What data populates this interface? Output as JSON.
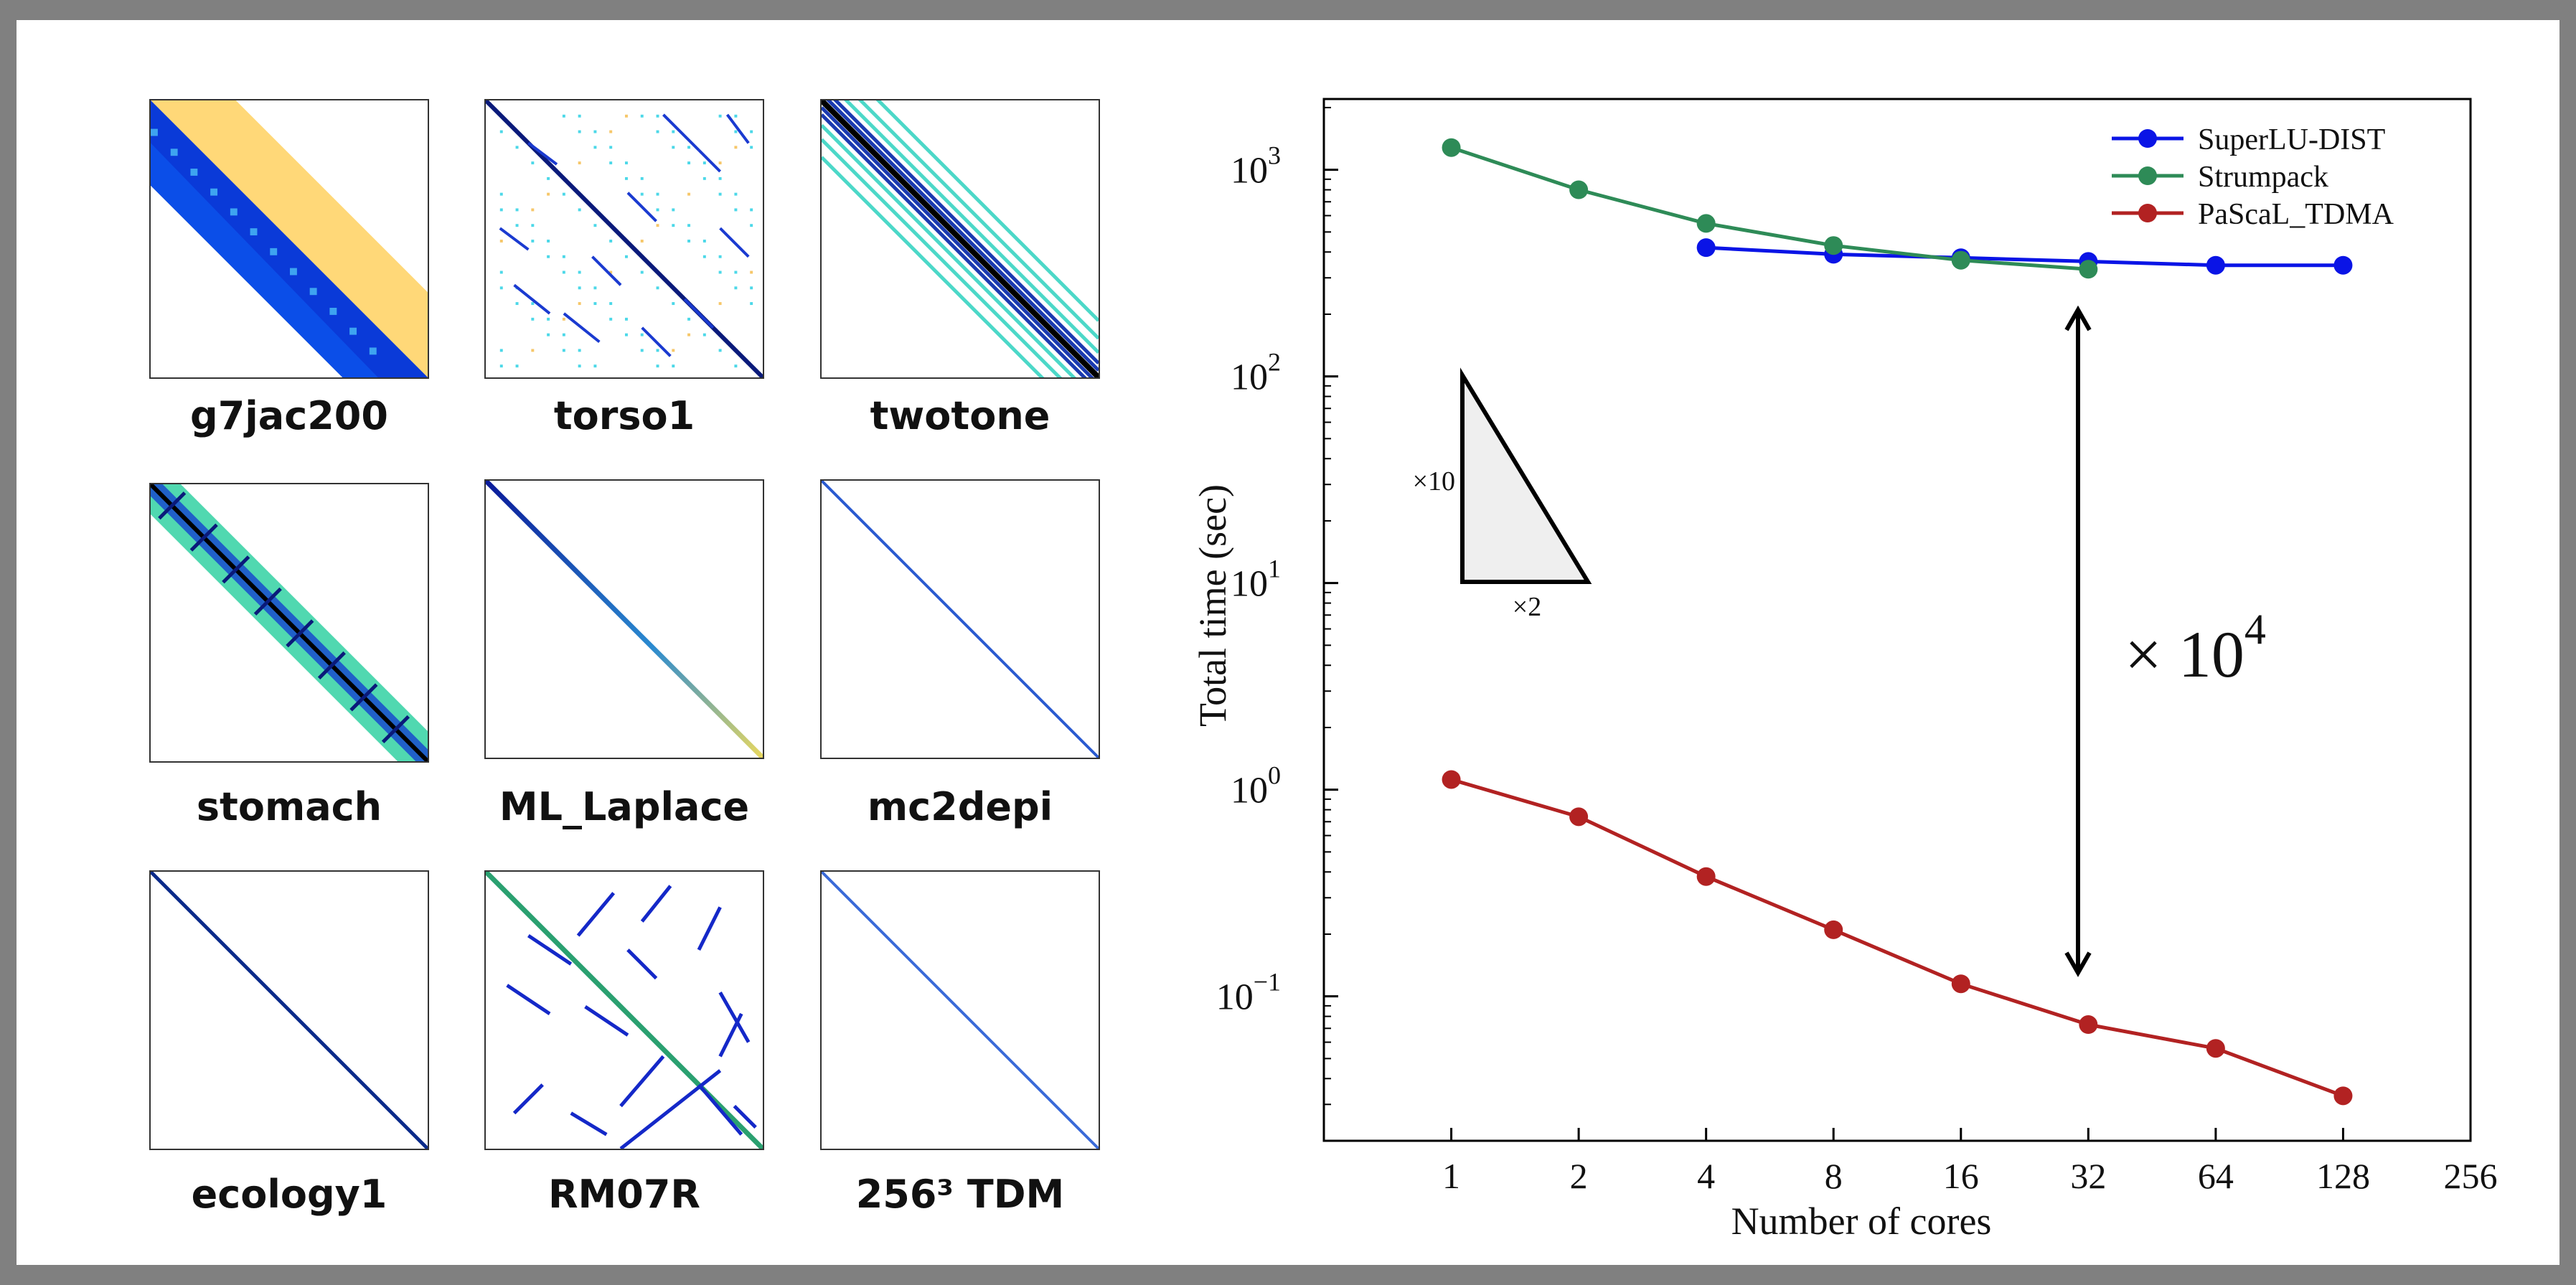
{
  "matrices": [
    {
      "name": "g7jac200",
      "pattern": "wide-band"
    },
    {
      "name": "torso1",
      "pattern": "scattered-blocks"
    },
    {
      "name": "twotone",
      "pattern": "multi-diagonal"
    },
    {
      "name": "stomach",
      "pattern": "thick-diagonal-crosses"
    },
    {
      "name": "ML_Laplace",
      "pattern": "thin-diagonal-gradient"
    },
    {
      "name": "mc2depi",
      "pattern": "thin-diagonal"
    },
    {
      "name": "ecology1",
      "pattern": "diagonal"
    },
    {
      "name": "RM07R",
      "pattern": "diagonal-with-segments"
    },
    {
      "name": "256³  TDM",
      "pattern": "tridiagonal"
    }
  ],
  "chart_data": {
    "type": "line",
    "xscale": "log2",
    "yscale": "log10",
    "xlabel": "Number of cores",
    "ylabel": "Total time (sec)",
    "xticks": [
      "1",
      "2",
      "4",
      "8",
      "16",
      "32",
      "64",
      "128",
      "256"
    ],
    "yticks": [
      {
        "value": 0.1,
        "base": "10",
        "exp": "−1"
      },
      {
        "value": 1,
        "base": "10",
        "exp": "0"
      },
      {
        "value": 10,
        "base": "10",
        "exp": "1"
      },
      {
        "value": 100,
        "base": "10",
        "exp": "2"
      },
      {
        "value": 1000,
        "base": "10",
        "exp": "3"
      }
    ],
    "xlim": [
      0.5,
      256
    ],
    "ylim": [
      0.02,
      2200
    ],
    "grid": false,
    "legend_position": "top-right",
    "series": [
      {
        "name": "SuperLU-DIST",
        "color": "#0a14e6",
        "x": [
          4,
          8,
          16,
          32,
          64,
          128
        ],
        "y": [
          420,
          390,
          375,
          360,
          345,
          345
        ]
      },
      {
        "name": "Strumpack",
        "color": "#2e8b57",
        "x": [
          1,
          2,
          4,
          8,
          16,
          32
        ],
        "y": [
          1280,
          800,
          550,
          430,
          365,
          330
        ]
      },
      {
        "name": "PaScaL_TDMA",
        "color": "#b22222",
        "x": [
          1,
          2,
          4,
          8,
          16,
          32,
          64,
          128
        ],
        "y": [
          1.12,
          0.74,
          0.38,
          0.21,
          0.115,
          0.073,
          0.056,
          0.033
        ]
      }
    ],
    "annotations": {
      "slope_triangle": {
        "vertical_label": "×10",
        "horizontal_label": "×2"
      },
      "speedup_arrow": {
        "x": 32,
        "y_top": 210,
        "y_bottom": 0.13,
        "label_base": "× 10",
        "label_exp": "4"
      }
    }
  }
}
